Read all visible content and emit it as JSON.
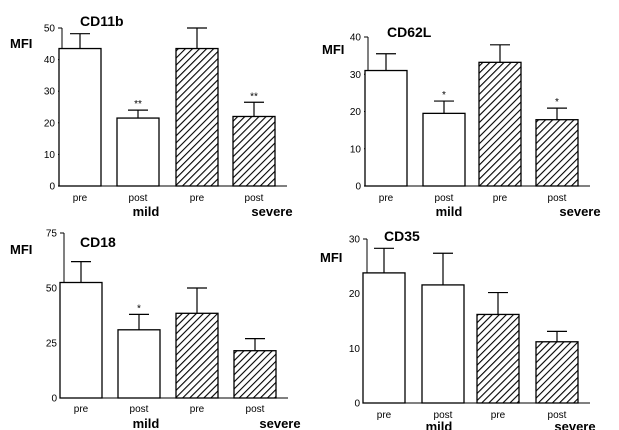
{
  "chart_data": [
    {
      "type": "bar",
      "title": "CD11b",
      "ylabel": "MFI",
      "ylim": [
        0,
        50
      ],
      "yticks": [
        0,
        10,
        20,
        30,
        40,
        50
      ],
      "categories": [
        "pre",
        "post",
        "pre",
        "post"
      ],
      "groups": [
        "mild",
        "severe"
      ],
      "values": [
        43.5,
        21.5,
        43.5,
        22.0
      ],
      "errors": [
        4.7,
        2.5,
        6.5,
        4.5
      ],
      "significance": [
        "",
        "**",
        "",
        "**"
      ],
      "fill": [
        "open",
        "open",
        "hatched",
        "hatched"
      ]
    },
    {
      "type": "bar",
      "title": "CD62L",
      "ylabel": "MFI",
      "ylim": [
        0,
        40
      ],
      "yticks": [
        0,
        10,
        20,
        30,
        40
      ],
      "categories": [
        "pre",
        "post",
        "pre",
        "post"
      ],
      "groups": [
        "mild",
        "severe"
      ],
      "values": [
        31.0,
        19.5,
        33.2,
        17.8
      ],
      "errors": [
        4.5,
        3.3,
        4.7,
        3.1
      ],
      "significance": [
        "",
        "*",
        "",
        "*"
      ],
      "fill": [
        "open",
        "open",
        "hatched",
        "hatched"
      ]
    },
    {
      "type": "bar",
      "title": "CD18",
      "ylabel": "MFI",
      "ylim": [
        0,
        75
      ],
      "yticks": [
        0,
        25,
        50,
        75
      ],
      "categories": [
        "pre",
        "post",
        "pre",
        "post"
      ],
      "groups": [
        "mild",
        "severe"
      ],
      "values": [
        52.5,
        31.0,
        38.5,
        21.5
      ],
      "errors": [
        9.5,
        7.0,
        11.5,
        5.5
      ],
      "significance": [
        "",
        "*",
        "",
        ""
      ],
      "fill": [
        "open",
        "open",
        "hatched",
        "hatched"
      ]
    },
    {
      "type": "bar",
      "title": "CD35",
      "ylabel": "MFI",
      "ylim": [
        0,
        30
      ],
      "yticks": [
        0,
        10,
        20,
        30
      ],
      "categories": [
        "pre",
        "post",
        "pre",
        "post"
      ],
      "groups": [
        "mild",
        "severe"
      ],
      "values": [
        23.8,
        21.6,
        16.2,
        11.2
      ],
      "errors": [
        4.5,
        5.8,
        4.0,
        1.9
      ],
      "significance": [
        "",
        "",
        "",
        ""
      ],
      "fill": [
        "open",
        "open",
        "hatched",
        "hatched"
      ]
    }
  ]
}
